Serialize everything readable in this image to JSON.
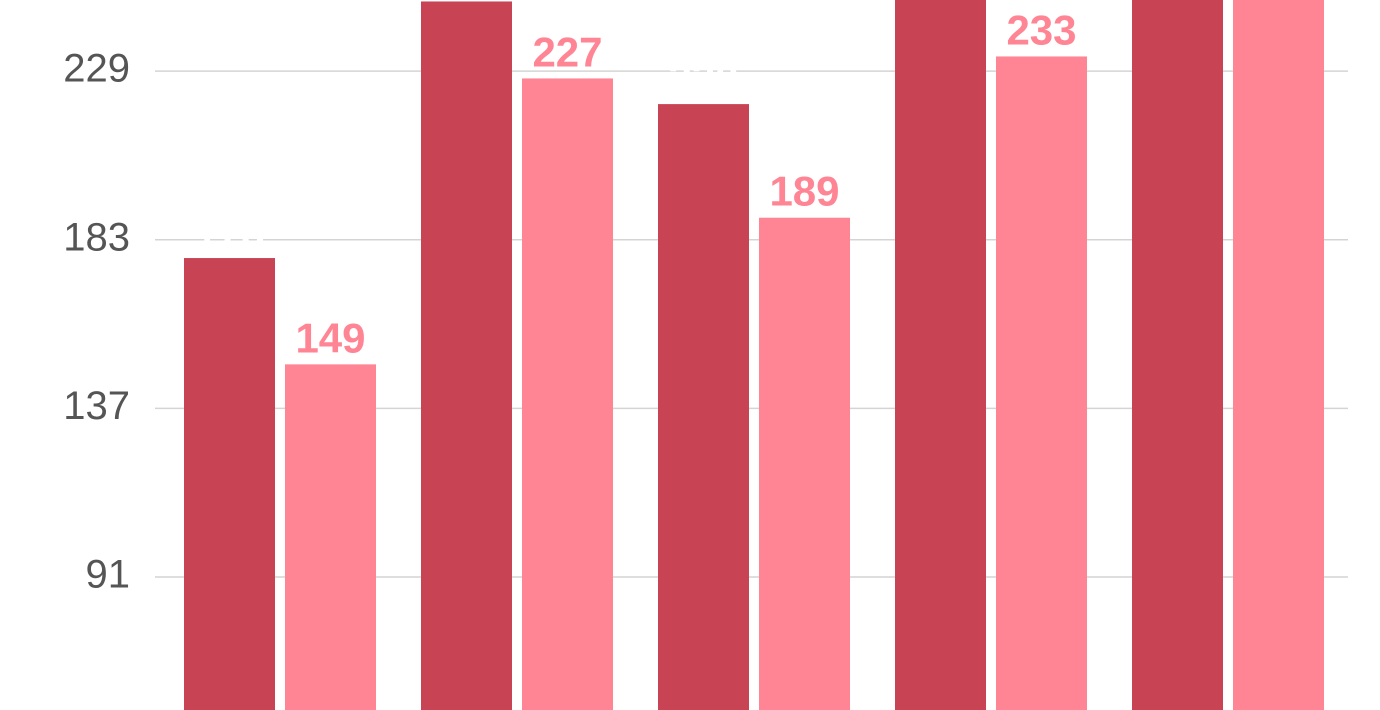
{
  "chart_data": {
    "type": "bar",
    "categories": [
      null,
      null,
      null,
      null,
      null
    ],
    "series": [
      {
        "color": "#c84354",
        "label_color": "#ffffff",
        "values": [
          178,
          248,
          220,
          258,
          262
        ]
      },
      {
        "color": "#ff8594",
        "label_color": "#ff8594",
        "values": [
          149,
          227,
          189,
          233,
          255
        ]
      }
    ],
    "ylim": [
      54.7,
      248.4
    ],
    "yticks": [
      91,
      137,
      183,
      229
    ],
    "grid": true
  }
}
